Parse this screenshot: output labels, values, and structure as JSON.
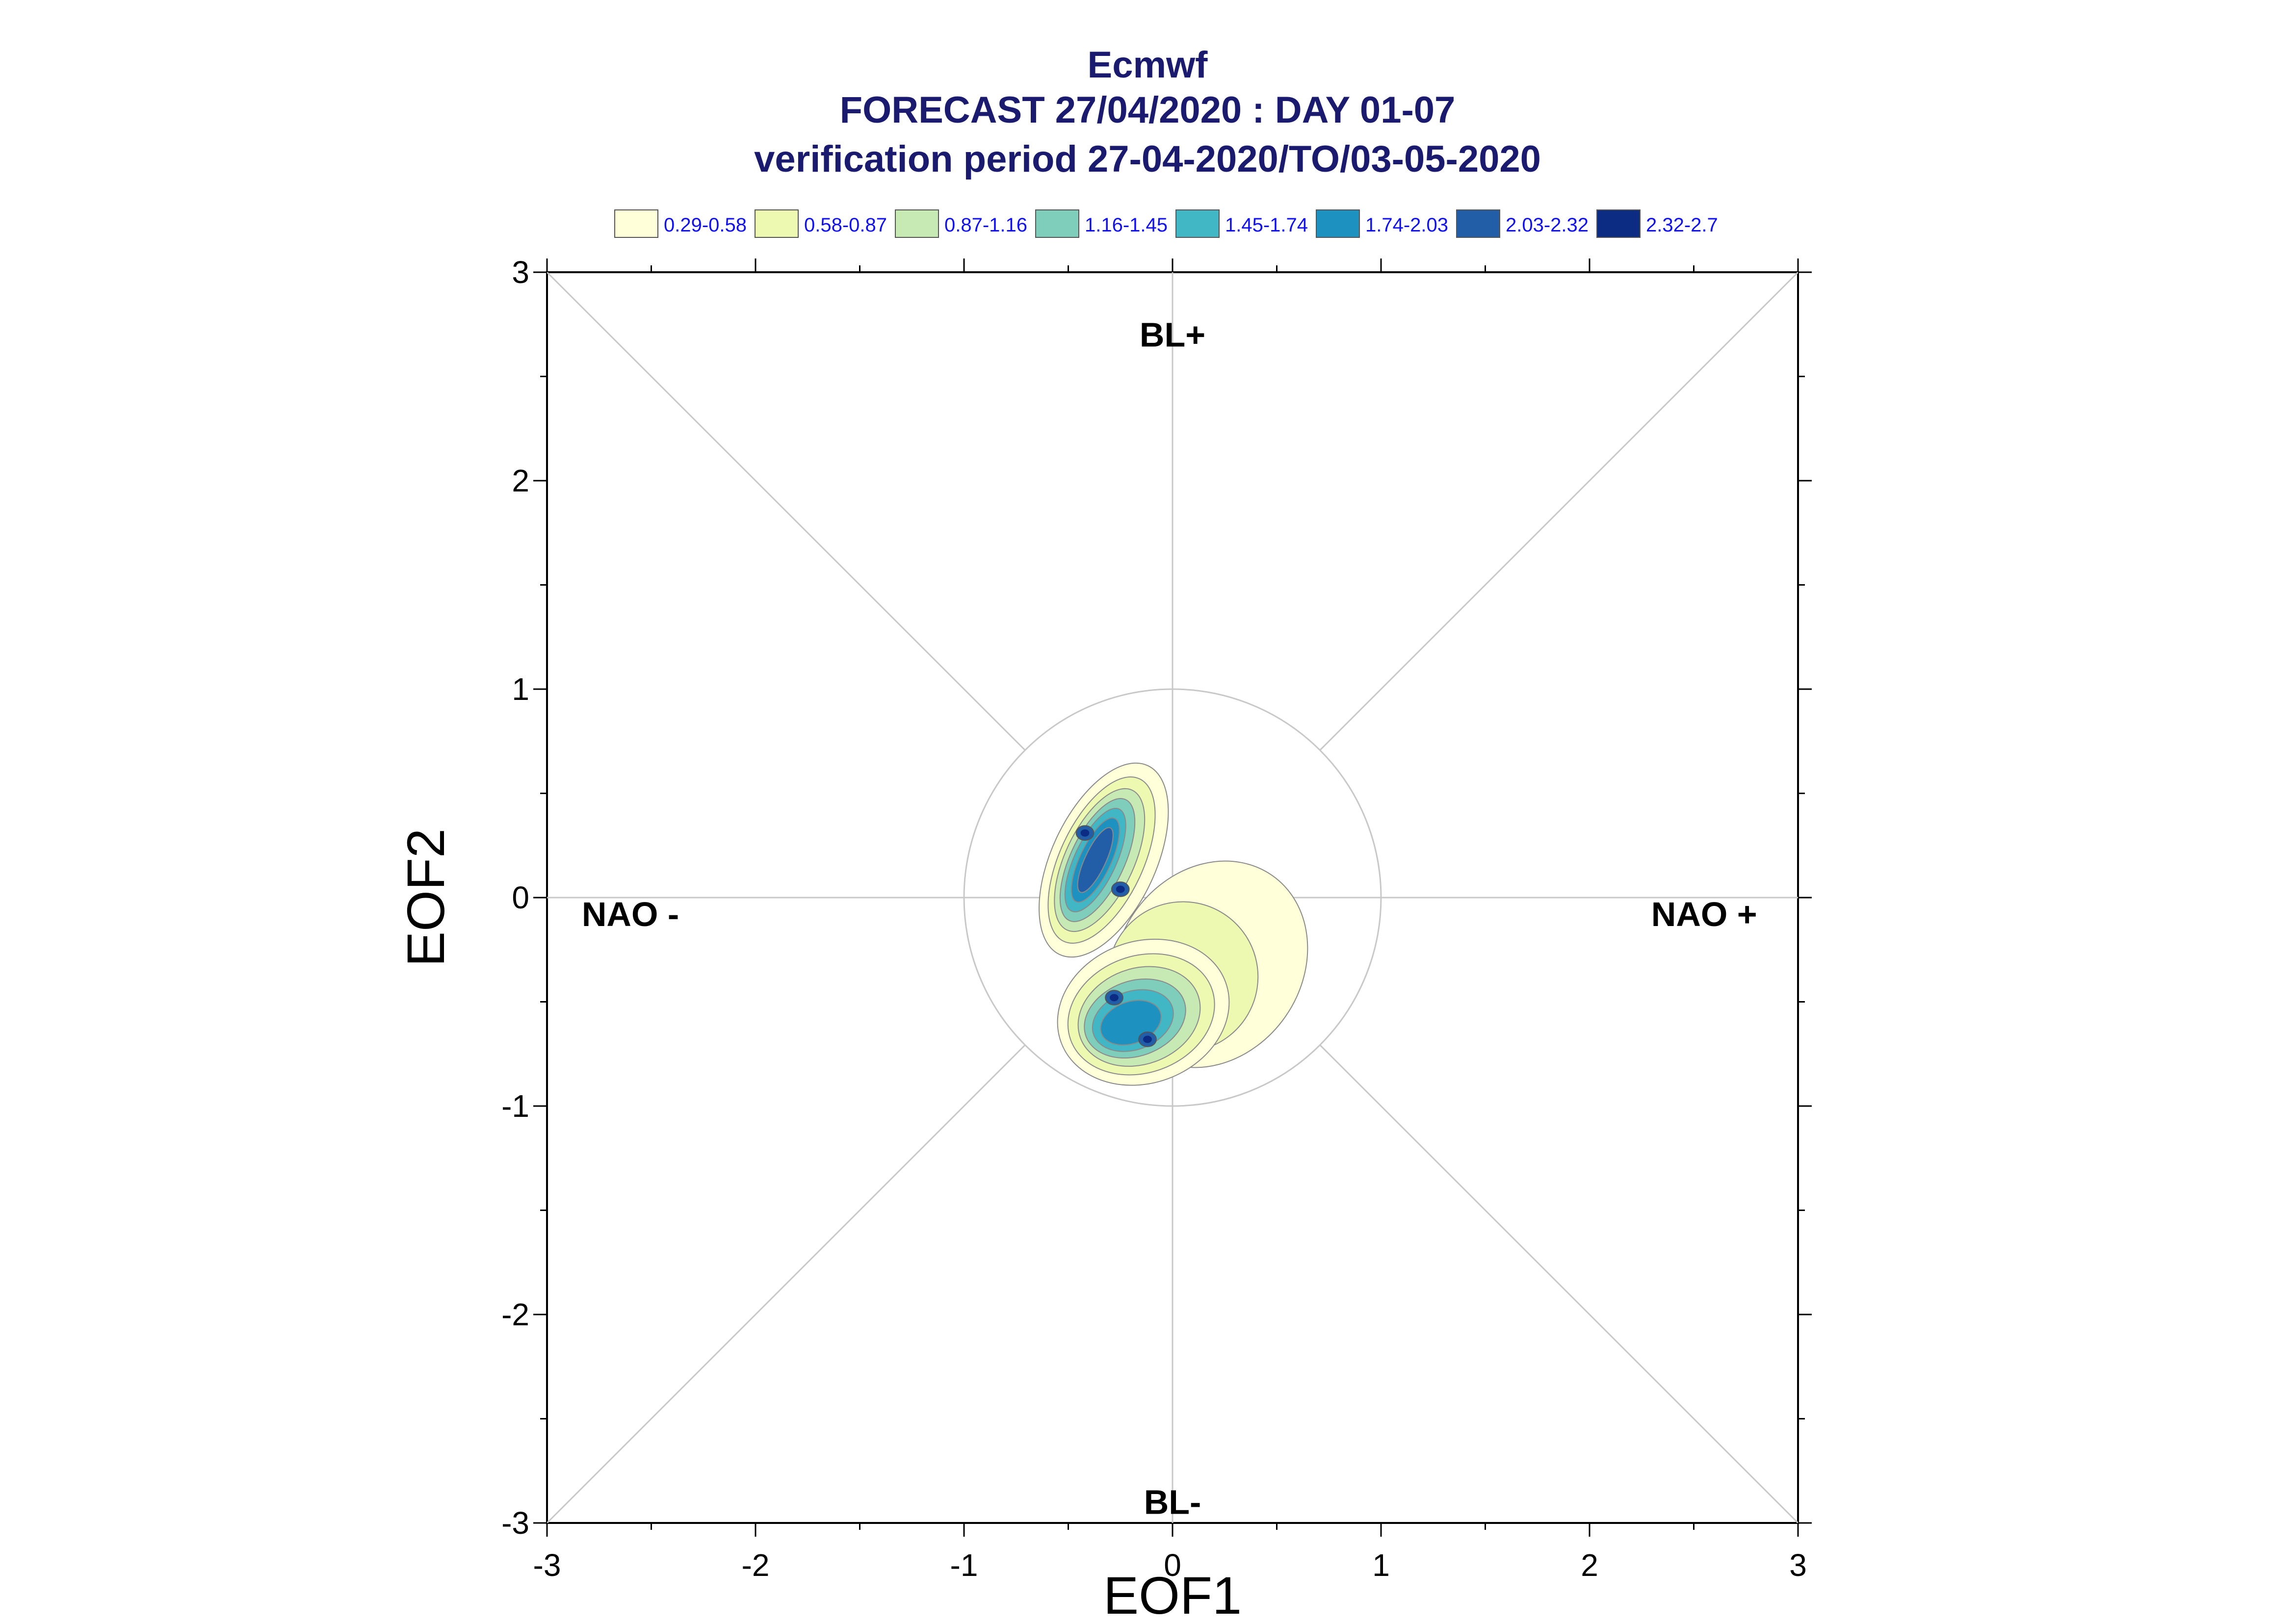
{
  "chart_data": {
    "type": "contour",
    "title": [
      "Ecmwf",
      "FORECAST 27/04/2020 : DAY 01-07",
      "verification period 27-04-2020/TO/03-05-2020"
    ],
    "xlabel": "EOF1",
    "ylabel": "EOF2",
    "xlim": [
      -3,
      3
    ],
    "ylim": [
      -3,
      3
    ],
    "x_ticks": [
      -3,
      -2,
      -1,
      0,
      1,
      2,
      3
    ],
    "y_ticks": [
      -3,
      -2,
      -1,
      0,
      1,
      2,
      3
    ],
    "x_tick_labels": [
      "-3",
      "-2",
      "-1",
      "0",
      "1",
      "2",
      "3"
    ],
    "y_tick_labels": [
      "-3",
      "-2",
      "-1",
      "0",
      "1",
      "2",
      "3"
    ],
    "reference_circle_radius": 1,
    "regime_labels": [
      {
        "text": "BL+",
        "x": 0,
        "y": 2.7
      },
      {
        "text": "BL-",
        "x": 0,
        "y": -2.9
      },
      {
        "text": "NAO -",
        "x": -2.6,
        "y": -0.08
      },
      {
        "text": "NAO +",
        "x": 2.55,
        "y": -0.08
      }
    ],
    "legend": [
      {
        "label": "0.29-0.58",
        "color": "#ffffd9"
      },
      {
        "label": "0.58-0.87",
        "color": "#edf8b1"
      },
      {
        "label": "0.87-1.16",
        "color": "#c7e9b4"
      },
      {
        "label": "1.16-1.45",
        "color": "#7fcdbb"
      },
      {
        "label": "1.45-1.74",
        "color": "#41b6c4"
      },
      {
        "label": "1.74-2.03",
        "color": "#1d91c0"
      },
      {
        "label": "2.03-2.32",
        "color": "#225ea8"
      },
      {
        "label": "2.32-2.7",
        "color": "#0c2c84"
      }
    ],
    "density_peaks": [
      {
        "x": -0.42,
        "y": 0.31,
        "max_level": "2.32-2.7"
      },
      {
        "x": -0.25,
        "y": 0.04,
        "max_level": "2.32-2.7"
      },
      {
        "x": -0.28,
        "y": -0.48,
        "max_level": "2.32-2.7"
      },
      {
        "x": -0.12,
        "y": -0.68,
        "max_level": "2.32-2.7"
      },
      {
        "x": 0.3,
        "y": -0.1,
        "max_level": "0.29-0.58"
      }
    ]
  }
}
